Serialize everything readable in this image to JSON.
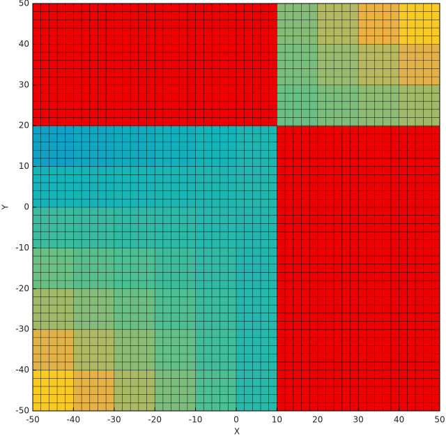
{
  "chart_data": {
    "type": "heatmap",
    "xlabel": "X",
    "ylabel": "Y",
    "xlim": [
      -50,
      50
    ],
    "ylim": [
      -50,
      50
    ],
    "xticks": [
      -50,
      -40,
      -30,
      -20,
      -10,
      0,
      10,
      20,
      30,
      40,
      50
    ],
    "yticks": [
      -50,
      -40,
      -30,
      -20,
      -10,
      0,
      10,
      20,
      30,
      40,
      50
    ],
    "x_edges": [
      -50,
      -40,
      -30,
      -20,
      -10,
      0,
      10,
      20,
      30,
      40,
      50
    ],
    "y_edges": [
      -50,
      -40,
      -30,
      -20,
      -10,
      0,
      10,
      20,
      30,
      40,
      50
    ],
    "grid_step": 2,
    "mask_color": "#ee0000",
    "colormap": [
      [
        0,
        "#0a84d8"
      ],
      [
        0.3,
        "#14b4b8"
      ],
      [
        0.5,
        "#5cc08a"
      ],
      [
        0.7,
        "#b8b860"
      ],
      [
        0.8,
        "#f2b040"
      ],
      [
        1,
        "#fff000"
      ]
    ],
    "clim": [
      0,
      1
    ],
    "values": [
      [
        0.88,
        0.78,
        0.67,
        0.57,
        0.46,
        0.36,
        null,
        null,
        null,
        null
      ],
      [
        0.77,
        0.68,
        0.6,
        0.52,
        0.43,
        0.35,
        null,
        null,
        null,
        null
      ],
      [
        0.65,
        0.59,
        0.53,
        0.47,
        0.41,
        0.35,
        null,
        null,
        null,
        null
      ],
      [
        0.53,
        0.49,
        0.46,
        0.42,
        0.38,
        0.34,
        null,
        null,
        null,
        null
      ],
      [
        0.41,
        0.4,
        0.38,
        0.37,
        0.35,
        0.34,
        null,
        null,
        null,
        null
      ],
      [
        0.3,
        0.3,
        0.31,
        0.32,
        0.33,
        0.34,
        null,
        null,
        null,
        null
      ],
      [
        0.18,
        0.21,
        0.24,
        0.27,
        0.3,
        0.33,
        null,
        null,
        null,
        null
      ],
      [
        null,
        null,
        null,
        null,
        null,
        null,
        0.53,
        0.57,
        0.61,
        0.65
      ],
      [
        null,
        null,
        null,
        null,
        null,
        null,
        0.56,
        0.63,
        0.7,
        0.77
      ],
      [
        null,
        null,
        null,
        null,
        null,
        null,
        0.59,
        0.69,
        0.79,
        0.88
      ]
    ]
  }
}
